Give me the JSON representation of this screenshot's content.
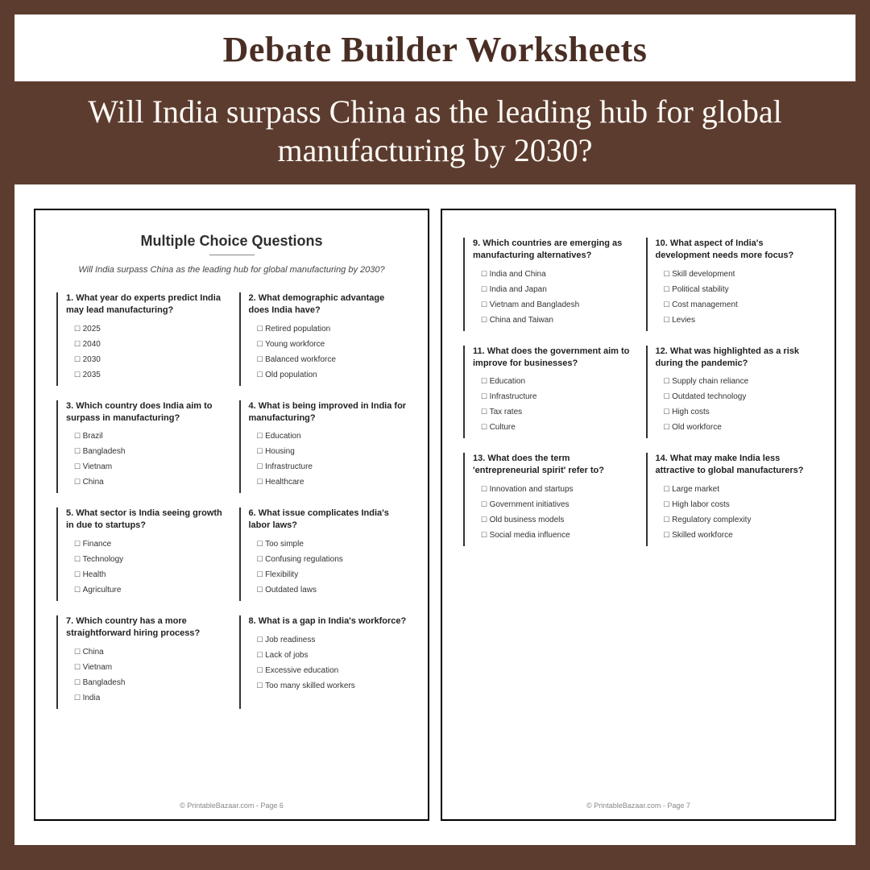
{
  "header": {
    "title": "Debate Builder Worksheets",
    "subtitle": "Will India surpass China as the leading hub for global manufacturing by 2030?"
  },
  "pageLeft": {
    "heading": "Multiple Choice Questions",
    "sub": "Will India surpass China as the leading hub for global manufacturing by 2030?",
    "footer": "© PrintableBazaar.com - Page 6",
    "questions": [
      {
        "t": "1. What year do experts predict India may lead manufacturing?",
        "o": [
          "2025",
          "2040",
          "2030",
          "2035"
        ]
      },
      {
        "t": "2. What demographic advantage does India have?",
        "o": [
          "Retired population",
          "Young workforce",
          "Balanced workforce",
          "Old population"
        ]
      },
      {
        "t": "3. Which country does India aim to surpass in manufacturing?",
        "o": [
          "Brazil",
          "Bangladesh",
          "Vietnam",
          "China"
        ]
      },
      {
        "t": "4. What is being improved in India for manufacturing?",
        "o": [
          "Education",
          "Housing",
          "Infrastructure",
          "Healthcare"
        ]
      },
      {
        "t": "5. What sector is India seeing growth in due to startups?",
        "o": [
          "Finance",
          "Technology",
          "Health",
          "Agriculture"
        ]
      },
      {
        "t": "6. What issue complicates India's labor laws?",
        "o": [
          "Too simple",
          "Confusing regulations",
          "Flexibility",
          "Outdated laws"
        ]
      },
      {
        "t": "7. Which country has a more straightforward hiring process?",
        "o": [
          "China",
          "Vietnam",
          "Bangladesh",
          "India"
        ]
      },
      {
        "t": "8. What is a gap in India's workforce?",
        "o": [
          "Job readiness",
          "Lack of jobs",
          "Excessive education",
          "Too many skilled workers"
        ]
      }
    ]
  },
  "pageRight": {
    "footer": "© PrintableBazaar.com - Page 7",
    "questions": [
      {
        "t": "9. Which countries are emerging as manufacturing alternatives?",
        "o": [
          "India and China",
          "India and Japan",
          "Vietnam and Bangladesh",
          "China and Taiwan"
        ]
      },
      {
        "t": "10. What aspect of India's development needs more focus?",
        "o": [
          "Skill development",
          "Political stability",
          "Cost management",
          "Levies"
        ]
      },
      {
        "t": "11. What does the government aim to improve for businesses?",
        "o": [
          "Education",
          "Infrastructure",
          "Tax rates",
          "Culture"
        ]
      },
      {
        "t": "12. What was highlighted as a risk during the pandemic?",
        "o": [
          "Supply chain reliance",
          "Outdated technology",
          "High costs",
          "Old workforce"
        ]
      },
      {
        "t": "13. What does the term 'entrepreneurial spirit' refer to?",
        "o": [
          "Innovation and startups",
          "Government initiatives",
          "Old business models",
          "Social media influence"
        ]
      },
      {
        "t": "14. What may make India less attractive to global manufacturers?",
        "o": [
          "Large market",
          "High labor costs",
          "Regulatory complexity",
          "Skilled workforce"
        ]
      }
    ]
  }
}
